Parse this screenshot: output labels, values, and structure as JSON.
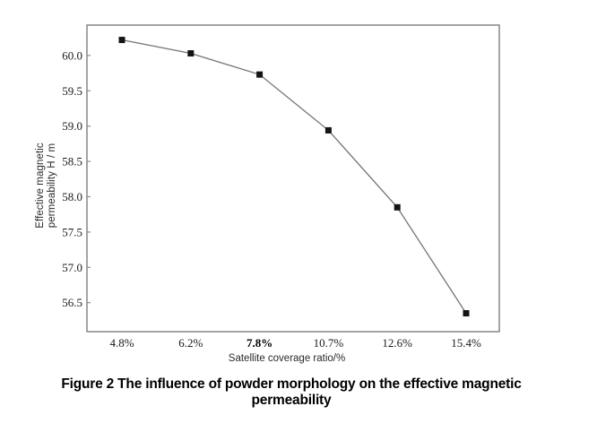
{
  "figure": {
    "caption_line1": "Figure 2 The influence of powder morphology on the effective magnetic",
    "caption_line2": "permeability"
  },
  "chart_data": {
    "type": "line",
    "title": "",
    "categories": [
      "4.8%",
      "6.2%",
      "7.8%",
      "10.7%",
      "12.6%",
      "15.4%"
    ],
    "values": [
      60.22,
      60.03,
      59.73,
      58.94,
      57.85,
      56.35
    ],
    "xlabel": "Satellite coverage ratio/%",
    "ylabel": "Effective magnetic permeability  H / m",
    "ylabel_lines": [
      "Effective magnetic",
      "permeability  H / m"
    ],
    "ytick_labels": [
      "60.0",
      "59.5",
      "59.0",
      "58.5",
      "58.0",
      "57.5",
      "57.0",
      "56.5"
    ],
    "ylim": [
      56.09,
      60.43
    ],
    "emphasized_category_index": 2,
    "grid": false,
    "legend": null,
    "marker": "square",
    "line_color": "#747474",
    "marker_color": "#141414",
    "frame_color": "#8e8e8e",
    "text_color": "#1a1a1a"
  }
}
